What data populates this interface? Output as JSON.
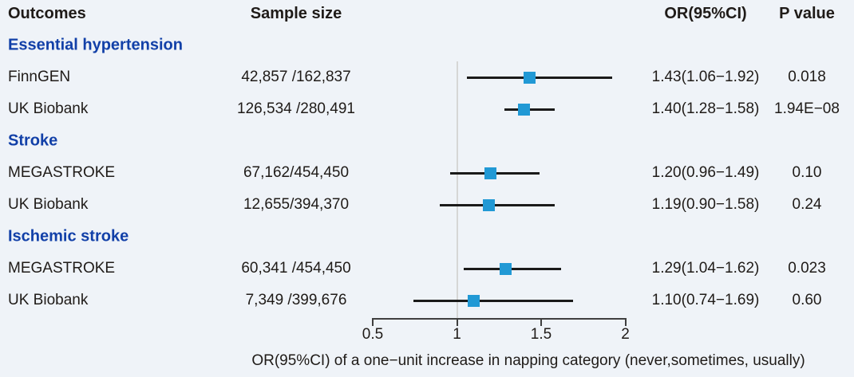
{
  "headers": {
    "outcomes": "Outcomes",
    "sample_size": "Sample size",
    "or_ci": "OR(95%CI)",
    "p_value": "P value"
  },
  "caption": "OR(95%CI) of a one−unit increase in napping category (never,sometimes, usually)",
  "colors": {
    "background": "#eff3f8",
    "group_header_text": "#1240a8",
    "body_text": "#1f1b18",
    "marker_square": "#2199d5",
    "ci_line": "#1a1a1a",
    "reference_line": "#d6d6d6",
    "axis_line": "#3f3f3f"
  },
  "chart_data": {
    "type": "scatter",
    "subtype": "forest-plot",
    "title": "",
    "xlabel": "OR(95%CI) of a one−unit increase in napping category (never,sometimes, usually)",
    "ylabel": "",
    "xlim": [
      0.5,
      2
    ],
    "x_scale": "linear",
    "x_ticks": {
      "values": [
        0.5,
        1,
        1.5,
        2
      ],
      "labels": [
        "0.5",
        "1",
        "1.5",
        "2"
      ]
    },
    "reference_line_x": 1,
    "grid": false,
    "legend": false,
    "groups": [
      {
        "name": "Essential hypertension",
        "studies": [
          {
            "study": "FinnGEN",
            "sample_size": "42,857 /162,837",
            "or": 1.43,
            "ci_low": 1.06,
            "ci_high": 1.92,
            "or_ci_text": "1.43(1.06−1.92)",
            "p_value": "0.018"
          },
          {
            "study": "UK Biobank",
            "sample_size": "126,534 /280,491",
            "or": 1.4,
            "ci_low": 1.28,
            "ci_high": 1.58,
            "or_ci_text": "1.40(1.28−1.58)",
            "p_value": "1.94E−08"
          }
        ]
      },
      {
        "name": "Stroke",
        "studies": [
          {
            "study": "MEGASTROKE",
            "sample_size": "67,162/454,450",
            "or": 1.2,
            "ci_low": 0.96,
            "ci_high": 1.49,
            "or_ci_text": "1.20(0.96−1.49)",
            "p_value": "0.10"
          },
          {
            "study": "UK Biobank",
            "sample_size": "12,655/394,370",
            "or": 1.19,
            "ci_low": 0.9,
            "ci_high": 1.58,
            "or_ci_text": "1.19(0.90−1.58)",
            "p_value": "0.24"
          }
        ]
      },
      {
        "name": "Ischemic stroke",
        "studies": [
          {
            "study": "MEGASTROKE",
            "sample_size": "60,341 /454,450",
            "or": 1.29,
            "ci_low": 1.04,
            "ci_high": 1.62,
            "or_ci_text": "1.29(1.04−1.62)",
            "p_value": "0.023"
          },
          {
            "study": "UK Biobank",
            "sample_size": "7,349 /399,676",
            "or": 1.1,
            "ci_low": 0.74,
            "ci_high": 1.69,
            "or_ci_text": "1.10(0.74−1.69)",
            "p_value": "0.60"
          }
        ]
      }
    ]
  }
}
